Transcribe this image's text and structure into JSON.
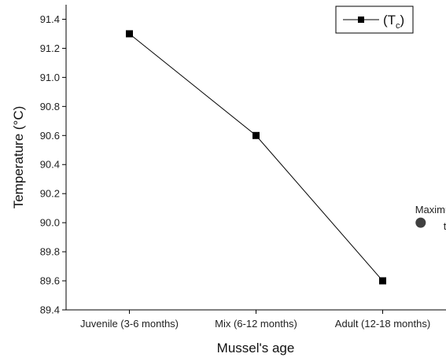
{
  "chart_data": {
    "type": "line",
    "categories": [
      "Juvenile (3-6 months)",
      "Mix (6-12 months)",
      "Adult (12-18 months)"
    ],
    "series": [
      {
        "name": "(T",
        "name_subscript": "c",
        "name_suffix": ")",
        "values": [
          91.3,
          90.6,
          89.6
        ],
        "marker": "square",
        "color": "#000000"
      }
    ],
    "xlabel": "Mussel's age",
    "ylabel": "Temperature (°C)",
    "ylim": [
      89.4,
      91.5
    ],
    "yticks": [
      "89.4",
      "89.6",
      "89.8",
      "90.0",
      "90.2",
      "90.4",
      "90.6",
      "90.8",
      "91.0",
      "91.2",
      "91.4"
    ],
    "annotation": {
      "x": 2.3,
      "y": 90.0,
      "line1": "Maximum operating",
      "line2": "temperature",
      "marker": "circle",
      "color": "#404040"
    },
    "legend_position": "top-right",
    "grid": false
  }
}
